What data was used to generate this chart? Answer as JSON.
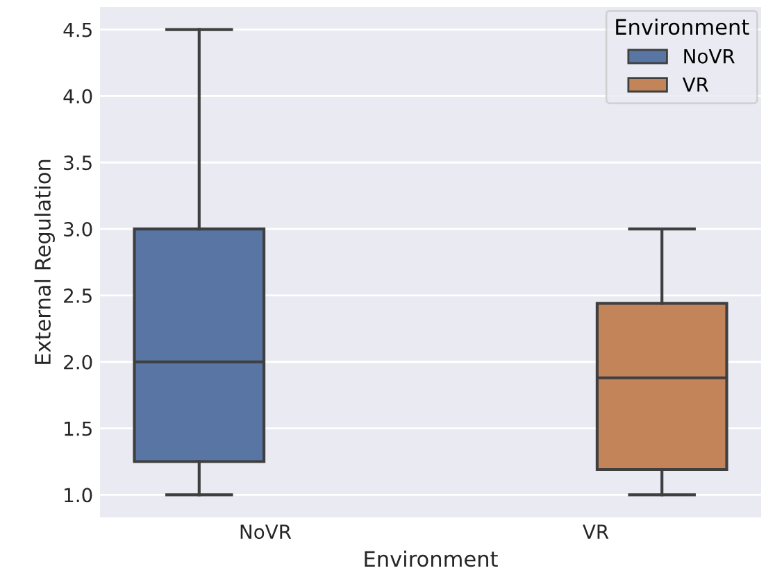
{
  "chart_data": {
    "type": "box",
    "xlabel": "Environment",
    "ylabel": "External Regulation",
    "categories": [
      "NoVR",
      "VR"
    ],
    "series": [
      {
        "name": "NoVR",
        "color": "#5975a4",
        "boxes": [
          {
            "low": 1.0,
            "q1": 1.25,
            "median": 2.0,
            "q3": 3.0,
            "high": 4.5
          },
          null
        ]
      },
      {
        "name": "VR",
        "color": "#c3845a",
        "boxes": [
          null,
          {
            "low": 1.0,
            "q1": 1.19,
            "median": 1.88,
            "q3": 2.44,
            "high": 3.0
          }
        ]
      }
    ],
    "ylim": [
      0.83,
      4.67
    ],
    "yticks": [
      {
        "value": 1.0,
        "label": "1.0"
      },
      {
        "value": 1.5,
        "label": "1.5"
      },
      {
        "value": 2.0,
        "label": "2.0"
      },
      {
        "value": 2.5,
        "label": "2.5"
      },
      {
        "value": 3.0,
        "label": "3.0"
      },
      {
        "value": 3.5,
        "label": "3.5"
      },
      {
        "value": 4.0,
        "label": "4.0"
      },
      {
        "value": 4.5,
        "label": "4.5"
      }
    ],
    "grid": "y",
    "legend": "top right",
    "legend_title": "Environment"
  }
}
